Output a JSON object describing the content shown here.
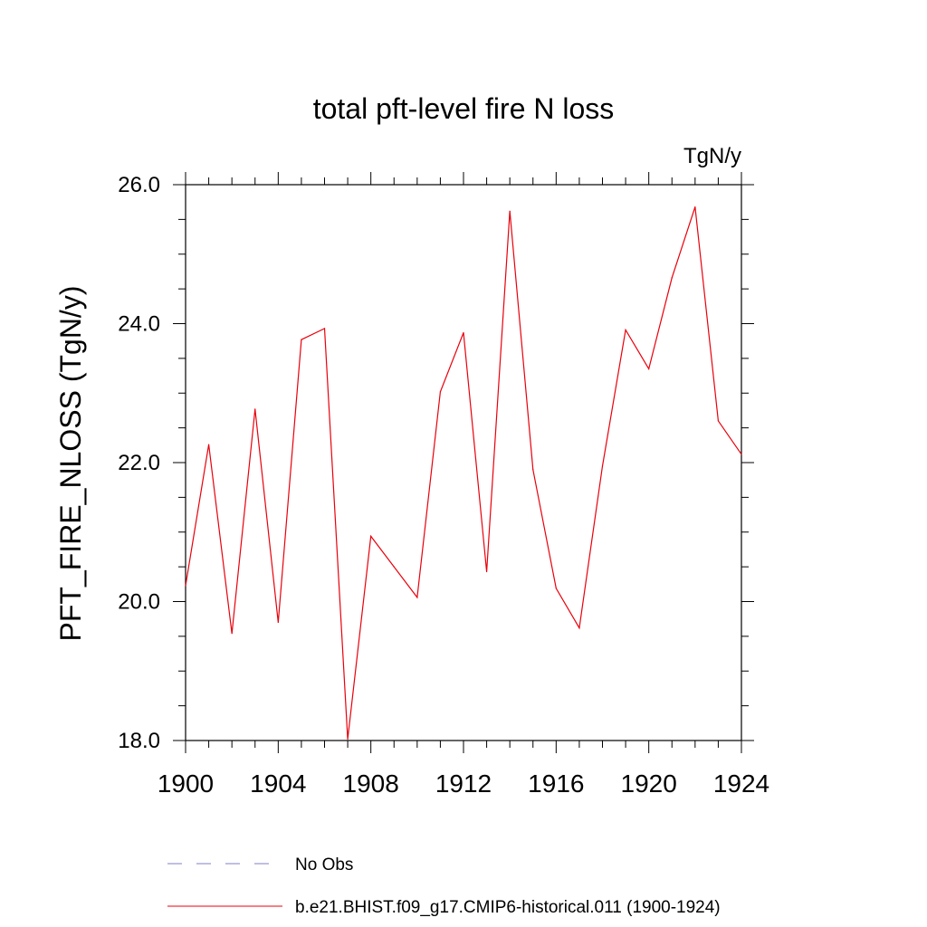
{
  "chart_data": {
    "type": "line",
    "title": "total pft-level fire N loss",
    "units": "TgN/y",
    "ylabel": "PFT_FIRE_NLOSS  (TgN/y)",
    "xlabel": "",
    "xlim": [
      1900,
      1924
    ],
    "ylim": [
      18.0,
      26.0
    ],
    "x_ticks": [
      1900,
      1904,
      1908,
      1912,
      1916,
      1920,
      1924
    ],
    "x_tick_labels": [
      "1900",
      "1904",
      "1908",
      "1912",
      "1916",
      "1920",
      "1924"
    ],
    "y_ticks": [
      18.0,
      20.0,
      22.0,
      24.0,
      26.0
    ],
    "y_tick_labels": [
      "18.0",
      "20.0",
      "22.0",
      "24.0",
      "26.0"
    ],
    "grid": false,
    "legend_position": "bottom",
    "series": [
      {
        "name": "No Obs",
        "color": "#7f7fc8",
        "dash": "dashed",
        "x": [],
        "values": []
      },
      {
        "name": "b.e21.BHIST.f09_g17.CMIP6-historical.011 (1900-1924)",
        "color": "#e8000b",
        "dash": "solid",
        "x": [
          1900,
          1901,
          1902,
          1903,
          1904,
          1905,
          1906,
          1907,
          1908,
          1909,
          1910,
          1911,
          1912,
          1913,
          1914,
          1915,
          1916,
          1917,
          1918,
          1919,
          1920,
          1921,
          1922,
          1923,
          1924
        ],
        "values": [
          20.23,
          22.26,
          19.54,
          22.77,
          19.7,
          23.77,
          23.93,
          18.02,
          20.94,
          20.5,
          20.06,
          23.02,
          23.87,
          20.43,
          25.62,
          21.9,
          20.19,
          19.62,
          21.95,
          23.91,
          23.35,
          24.66,
          25.68,
          22.6,
          22.12
        ]
      }
    ]
  }
}
